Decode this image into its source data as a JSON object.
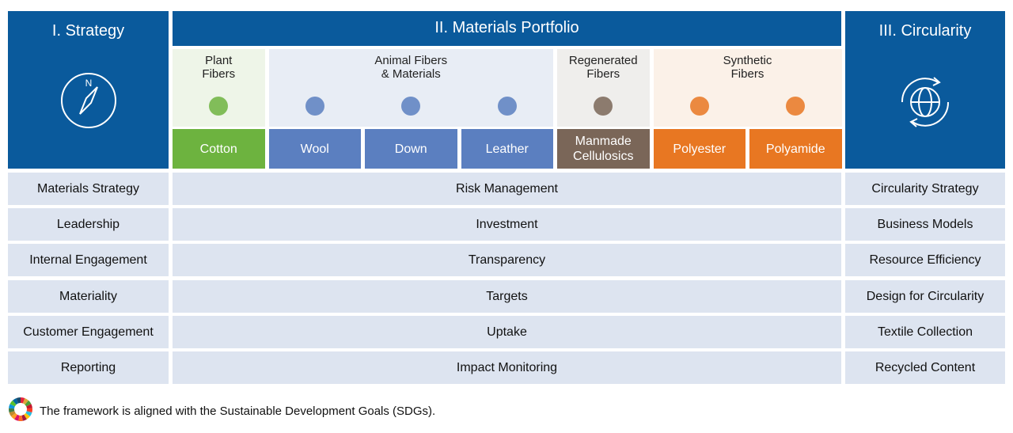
{
  "header": {
    "strategy": "I. Strategy",
    "portfolio": "II. Materials Portfolio",
    "circularity": "III. Circularity"
  },
  "groups": [
    {
      "label": "Plant\nFibers",
      "materials": [
        "Cotton"
      ]
    },
    {
      "label": "Animal Fibers\n& Materials",
      "materials": [
        "Wool",
        "Down",
        "Leather"
      ]
    },
    {
      "label": "Regenerated\nFibers",
      "materials": [
        "Manmade\nCellulosics"
      ]
    },
    {
      "label": "Synthetic\nFibers",
      "materials": [
        "Polyester",
        "Polyamide"
      ]
    }
  ],
  "rows": [
    [
      "Materials Strategy",
      "Risk Management",
      "Circularity Strategy"
    ],
    [
      "Leadership",
      "Investment",
      "Business Models"
    ],
    [
      "Internal Engagement",
      "Transparency",
      "Resource Efficiency"
    ],
    [
      "Materiality",
      "Targets",
      "Design for Circularity"
    ],
    [
      "Customer Engagement",
      "Uptake",
      "Textile Collection"
    ],
    [
      "Reporting",
      "Impact Monitoring",
      "Recycled Content"
    ]
  ],
  "footer": "The framework is aligned with the Sustainable Development Goals (SDGs)."
}
